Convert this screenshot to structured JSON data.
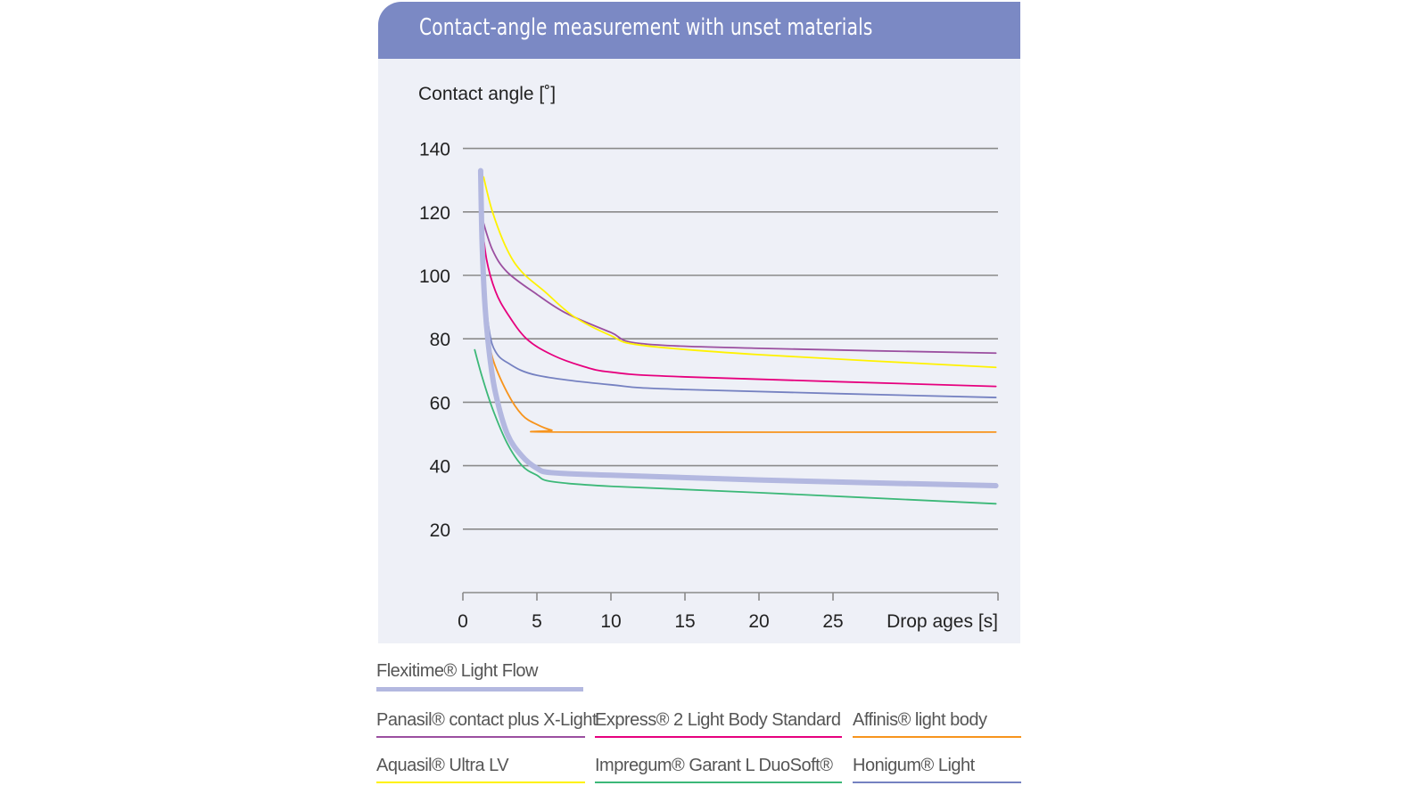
{
  "chart_data": {
    "type": "line",
    "title": "Contact-angle measurement with unset materials",
    "ylabel": "Contact angle [˚]",
    "xlabel": "Drop ages [s]",
    "xlim": [
      0,
      36
    ],
    "ylim": [
      0,
      140
    ],
    "x_ticks": [
      0,
      5,
      10,
      15,
      20,
      25
    ],
    "y_ticks": [
      20,
      40,
      60,
      80,
      100,
      120,
      140
    ],
    "grid": "horizontal",
    "legend_position": "bottom",
    "series": [
      {
        "name": "Flexitime® Light Flow",
        "color": "#b3b8e0",
        "points": [
          [
            1.2,
            133
          ],
          [
            1.3,
            110
          ],
          [
            1.5,
            90
          ],
          [
            1.8,
            75
          ],
          [
            2.2,
            63
          ],
          [
            3,
            50
          ],
          [
            4,
            43
          ],
          [
            5,
            39.2
          ],
          [
            6,
            37.8
          ],
          [
            10,
            37
          ],
          [
            20,
            35.5
          ],
          [
            36,
            33.7
          ]
        ]
      },
      {
        "name": "Panasil® contact plus X-Light",
        "color": "#9b4fa0",
        "points": [
          [
            1.3,
            118
          ],
          [
            2,
            108
          ],
          [
            3,
            101
          ],
          [
            5,
            94
          ],
          [
            7,
            88
          ],
          [
            10,
            82
          ],
          [
            12,
            78.5
          ],
          [
            20,
            77
          ],
          [
            36,
            75.5
          ]
        ]
      },
      {
        "name": "Express® 2 Light Body Standard",
        "color": "#e6007e",
        "points": [
          [
            1.2,
            120
          ],
          [
            1.6,
            105
          ],
          [
            2.2,
            95
          ],
          [
            3,
            88
          ],
          [
            4.3,
            80
          ],
          [
            6,
            75
          ],
          [
            8,
            71.5
          ],
          [
            10,
            69.5
          ],
          [
            15,
            68
          ],
          [
            36,
            65
          ]
        ]
      },
      {
        "name": "Affinis® light body",
        "color": "#f7941d",
        "points": [
          [
            1.3,
            100
          ],
          [
            1.6,
            85
          ],
          [
            2,
            74
          ],
          [
            3,
            63
          ],
          [
            4,
            56
          ],
          [
            5,
            53
          ],
          [
            6,
            51.2
          ],
          [
            7,
            50.6
          ],
          [
            36,
            50.6
          ]
        ]
      },
      {
        "name": "Aquasil® Ultra LV",
        "color": "#fff200",
        "points": [
          [
            1.4,
            131
          ],
          [
            2,
            120
          ],
          [
            3,
            108
          ],
          [
            4,
            101
          ],
          [
            5.5,
            95
          ],
          [
            7.5,
            87
          ],
          [
            10,
            81
          ],
          [
            12,
            78
          ],
          [
            20,
            75
          ],
          [
            36,
            71
          ]
        ]
      },
      {
        "name": "Impregum® Garant L DuoSoft®",
        "color": "#3cb878",
        "points": [
          [
            0.8,
            76.5
          ],
          [
            1.3,
            68
          ],
          [
            2,
            58
          ],
          [
            3,
            47
          ],
          [
            4,
            40
          ],
          [
            5,
            37
          ],
          [
            6,
            35
          ],
          [
            10,
            33.5
          ],
          [
            20,
            31.5
          ],
          [
            36,
            28
          ]
        ]
      },
      {
        "name": "Honigum® Light",
        "color": "#7581c1",
        "points": [
          [
            1.3,
            111
          ],
          [
            1.5,
            95
          ],
          [
            1.8,
            82
          ],
          [
            2.2,
            76
          ],
          [
            3,
            72.5
          ],
          [
            5,
            68.5
          ],
          [
            10,
            65.5
          ],
          [
            15,
            64
          ],
          [
            36,
            61.5
          ]
        ]
      }
    ]
  }
}
